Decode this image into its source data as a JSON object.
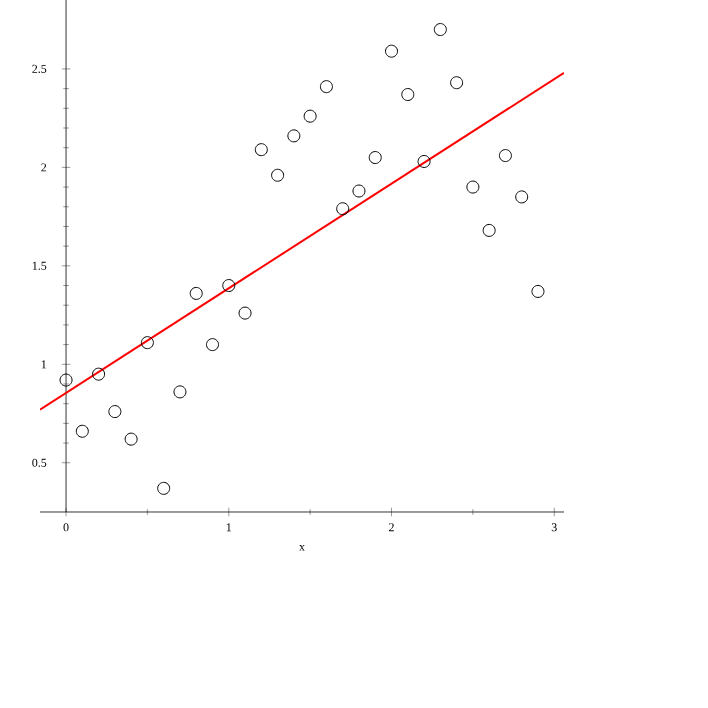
{
  "chart_data": {
    "type": "scatter",
    "xlabel": "x",
    "xlim": [
      -0.16,
      3.06
    ],
    "ylim": [
      0.25,
      2.85
    ],
    "xticks": [
      0,
      1,
      2,
      3
    ],
    "yticks": [
      0.5,
      1,
      1.5,
      2,
      2.5
    ],
    "grid": false,
    "series": [
      {
        "marker": "circle",
        "color": "#000000",
        "x": [
          0,
          0.1,
          0.2,
          0.3,
          0.4,
          0.5,
          0.6,
          0.7,
          0.8,
          0.9,
          1.0,
          1.1,
          1.2,
          1.3,
          1.4,
          1.5,
          1.6,
          1.7,
          1.8,
          1.9,
          2.0,
          2.1,
          2.2,
          2.3,
          2.4,
          2.5,
          2.6,
          2.7,
          2.8,
          2.9
        ],
        "values": [
          0.92,
          0.66,
          0.95,
          0.76,
          0.62,
          1.11,
          0.37,
          0.86,
          1.36,
          1.1,
          1.4,
          1.26,
          2.09,
          1.96,
          2.16,
          2.26,
          2.41,
          1.79,
          1.88,
          2.05,
          2.59,
          2.37,
          2.03,
          2.7,
          2.43,
          1.9,
          1.68,
          2.06,
          1.85,
          1.37
        ]
      },
      {
        "type": "line",
        "marker": "none",
        "color": "#ff0000",
        "line_style": "solid",
        "x": [
          -0.16,
          3.06
        ],
        "values": [
          0.77,
          2.48
        ]
      }
    ]
  }
}
